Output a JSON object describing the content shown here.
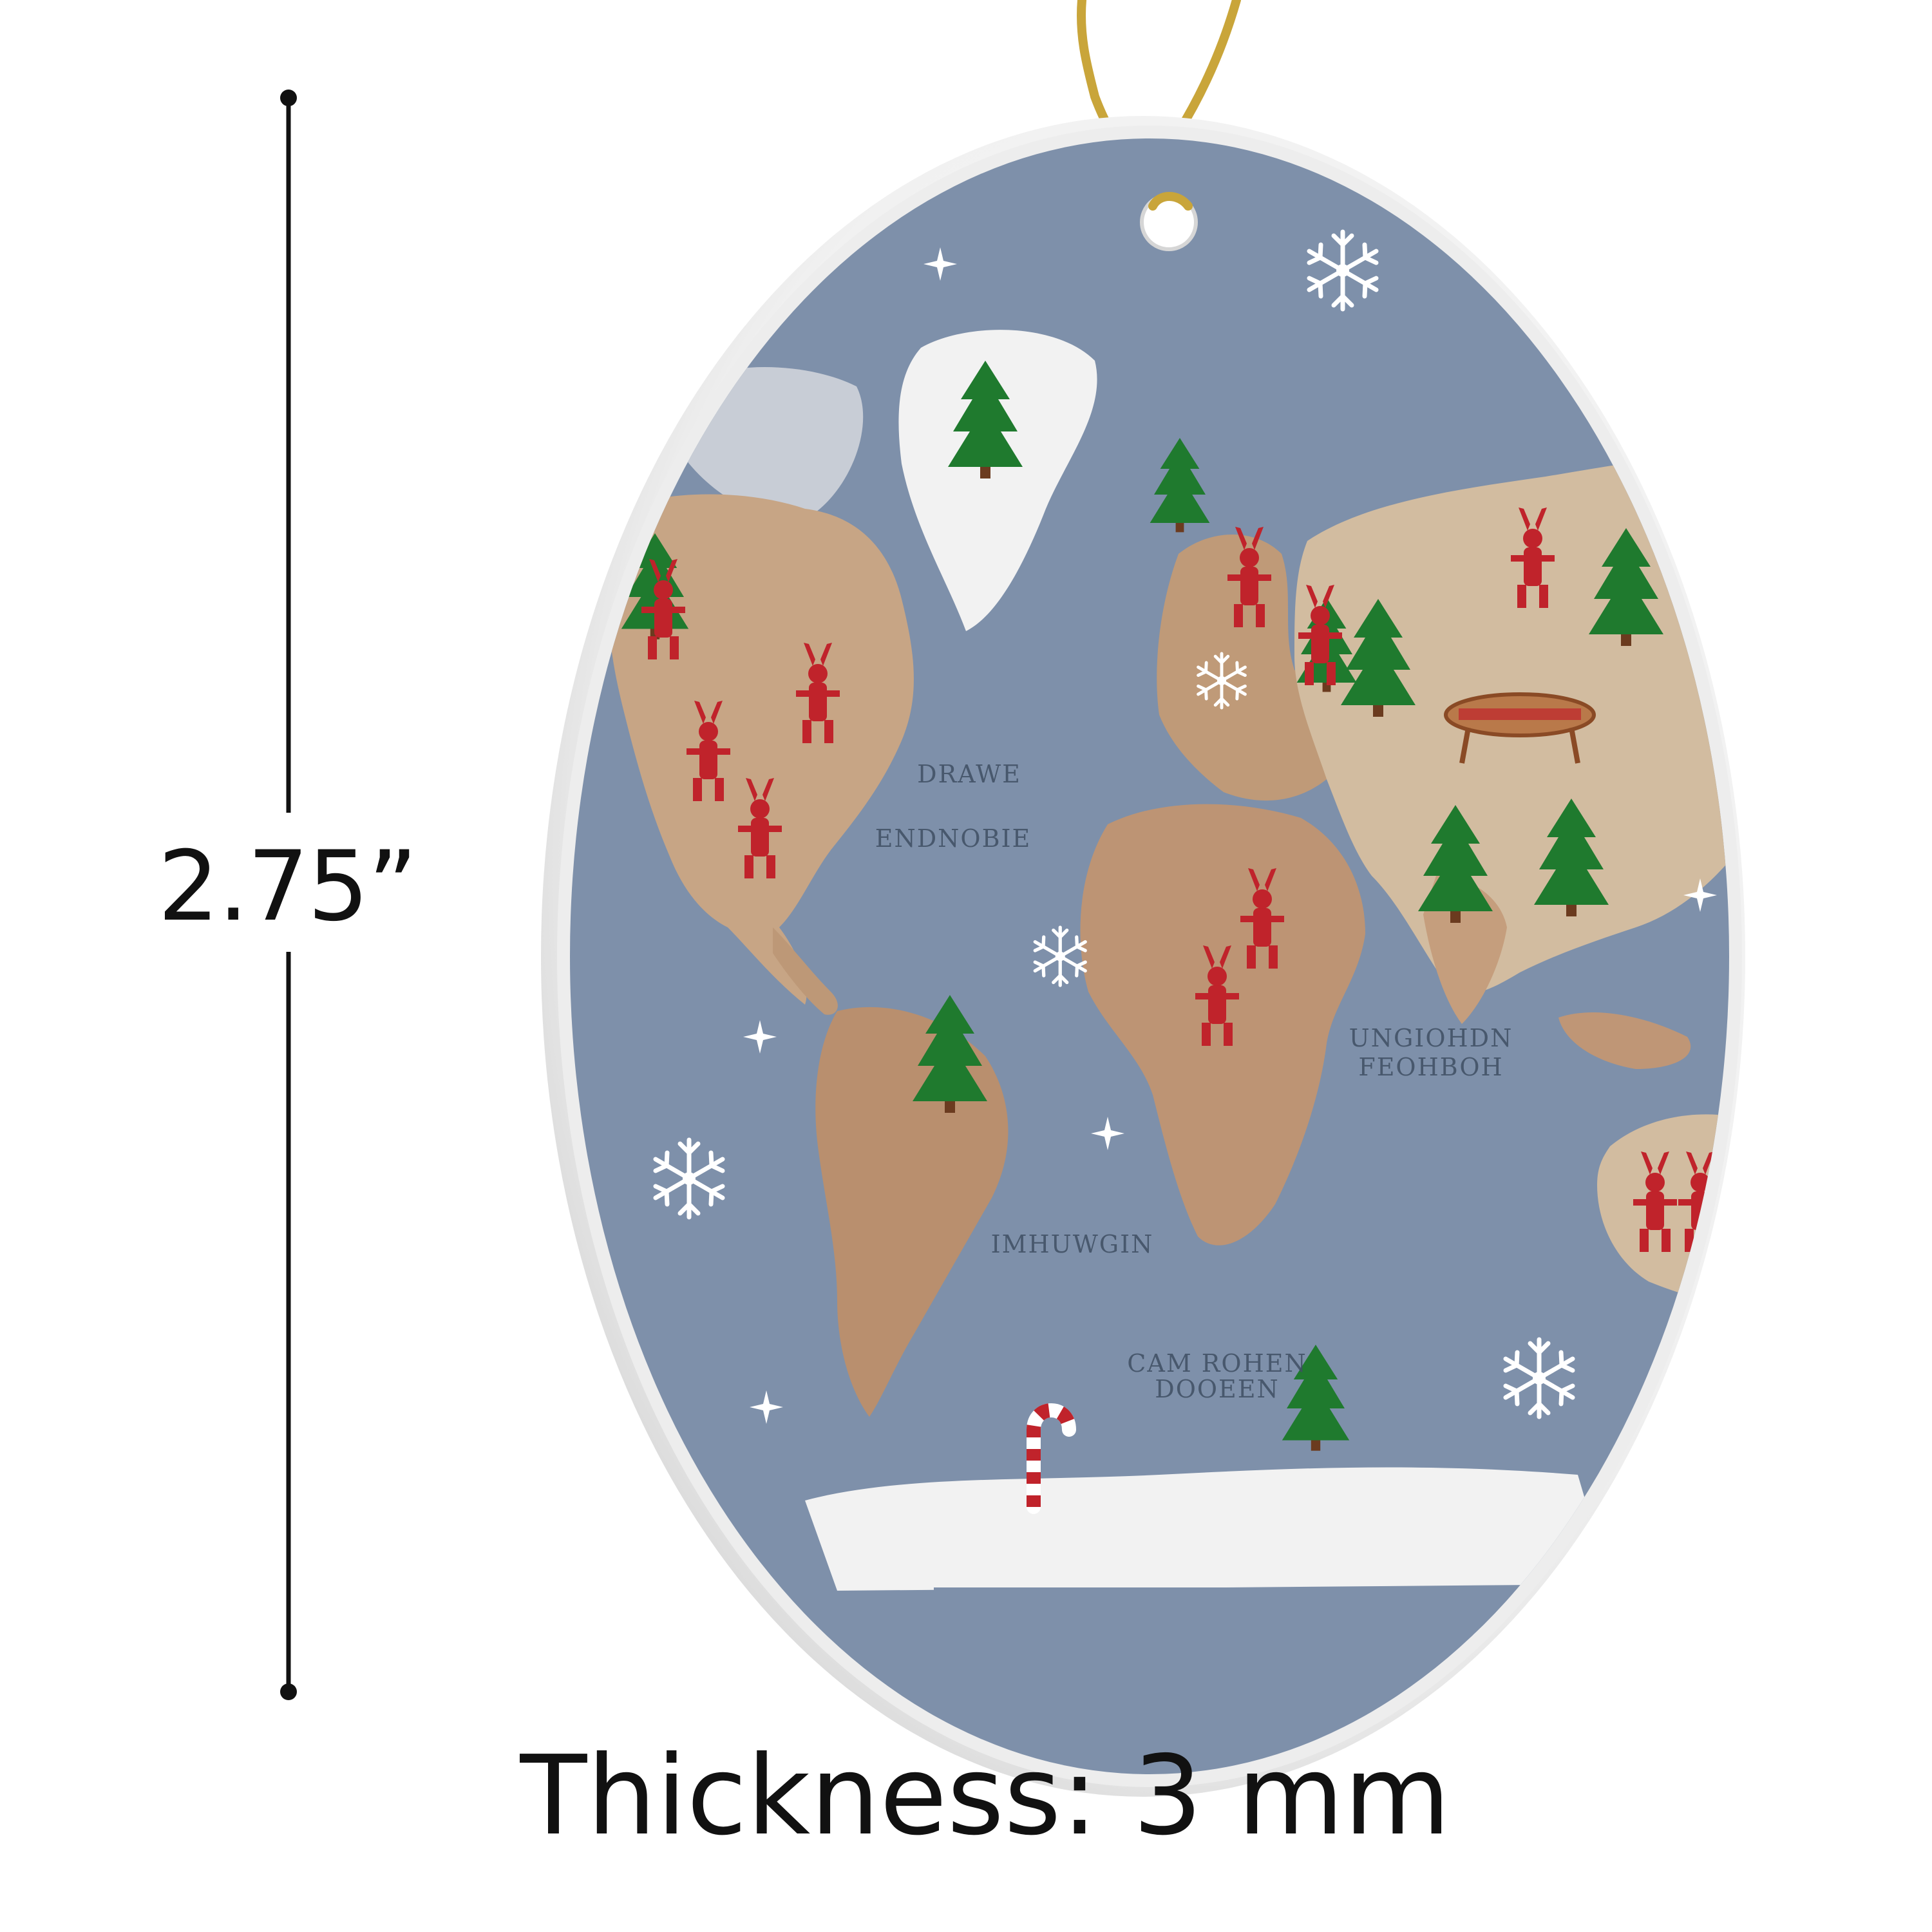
{
  "dimension": {
    "height_label": "2.75”"
  },
  "footer": {
    "thickness_label": "Thickness: 3 mm"
  },
  "map_labels": {
    "north_atlantic_a": "DRAWE",
    "north_atlantic_b": "ENDNOBIE",
    "indian_ocean_a": "UNGIOHDN",
    "indian_ocean_b": "FEOHBOH",
    "south_atlantic": "IMHUWGIN",
    "southern_ocean_a": "CAM ROHEN",
    "southern_ocean_b": "DOOEEN"
  },
  "colors": {
    "ocean": "#7e90aa",
    "land": "#c7a585",
    "snow_land": "#f2f2f2",
    "tree": "#1f7a2e",
    "reindeer": "#c0232b",
    "string": "#c9a53a",
    "rim": "#e8e8e8"
  },
  "icons": [
    "snowflake-icon",
    "tree-icon",
    "reindeer-icon",
    "candy-cane-icon",
    "star-sparkle-icon"
  ]
}
